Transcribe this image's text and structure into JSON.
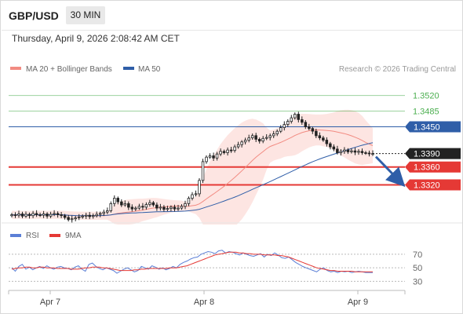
{
  "header": {
    "symbol": "GBP/USD",
    "timeframe": "30 MIN",
    "datetime": "Thursday, April 9, 2026 2:08:42 AM CET"
  },
  "legend": {
    "ma20": {
      "label": "MA 20 + Bollinger Bands",
      "color": "#f28b82"
    },
    "ma50": {
      "label": "MA 50",
      "color": "#2f5ea8"
    },
    "credit": "Research © 2026 Trading Central"
  },
  "rsi_legend": {
    "rsi": {
      "label": "RSI",
      "color": "#5b7fd6"
    },
    "ma9": {
      "label": "9MA",
      "color": "#e53935"
    }
  },
  "colors": {
    "resistance": "#4caf50",
    "pivot": "#2f5ea8",
    "support": "#e53935",
    "current": "#222222",
    "band_fill": "#fde0dd",
    "bull_candle": "#ffffff",
    "bear_candle": "#222222",
    "arrow": "#2f5ea8"
  },
  "chart_data": [
    {
      "type": "candlestick",
      "title": "GBP/USD",
      "x_tick_labels": [
        "Apr 7",
        "Apr 8",
        "Apr 9"
      ],
      "ylim": [
        1.324,
        1.3565
      ],
      "levels": [
        {
          "value": 1.352,
          "label": "1.3520",
          "kind": "resistance"
        },
        {
          "value": 1.3485,
          "label": "1.3485",
          "kind": "resistance"
        },
        {
          "value": 1.345,
          "label": "1.3450",
          "kind": "pivot"
        },
        {
          "value": 1.339,
          "label": "1.3390",
          "kind": "current"
        },
        {
          "value": 1.336,
          "label": "1.3360",
          "kind": "support"
        },
        {
          "value": 1.332,
          "label": "1.3320",
          "kind": "support"
        }
      ],
      "series": [
        {
          "name": "MA 20 + Bollinger Bands",
          "kind": "ma20_with_bands"
        },
        {
          "name": "MA 50",
          "kind": "ma50"
        }
      ],
      "price_path": [
        1.3253,
        1.3252,
        1.3255,
        1.325,
        1.3254,
        1.3251,
        1.3256,
        1.3253,
        1.3252,
        1.3255,
        1.325,
        1.3254,
        1.3256,
        1.3253,
        1.3251,
        1.3247,
        1.3242,
        1.3244,
        1.3246,
        1.3248,
        1.325,
        1.3252,
        1.3249,
        1.3251,
        1.3254,
        1.3256,
        1.3259,
        1.3262,
        1.3278,
        1.329,
        1.3282,
        1.3275,
        1.3278,
        1.327,
        1.3266,
        1.3268,
        1.3272,
        1.327,
        1.3276,
        1.328,
        1.3275,
        1.3268,
        1.327,
        1.3265,
        1.3267,
        1.327,
        1.3266,
        1.3268,
        1.3272,
        1.3278,
        1.329,
        1.3298,
        1.33,
        1.333,
        1.3372,
        1.3382,
        1.3385,
        1.338,
        1.3389,
        1.3395,
        1.3392,
        1.3398,
        1.3397,
        1.3405,
        1.341,
        1.3416,
        1.342,
        1.3425,
        1.343,
        1.3422,
        1.3418,
        1.3424,
        1.3426,
        1.343,
        1.3434,
        1.344,
        1.3448,
        1.3455,
        1.3462,
        1.347,
        1.3478,
        1.3466,
        1.346,
        1.345,
        1.3446,
        1.344,
        1.343,
        1.3425,
        1.342,
        1.3412,
        1.3405,
        1.34,
        1.3392,
        1.3395,
        1.3398,
        1.3394,
        1.3396,
        1.3393,
        1.3395,
        1.3392,
        1.3391,
        1.339,
        1.339
      ],
      "projection": {
        "from": 1.339,
        "to": 1.332
      }
    },
    {
      "type": "line",
      "title": "RSI",
      "series_names": [
        "RSI",
        "9MA"
      ],
      "y_tick_labels": [
        "70",
        "50",
        "30"
      ],
      "ylim": [
        20,
        85
      ],
      "rsi": [
        50,
        45,
        52,
        55,
        48,
        51,
        47,
        50,
        52,
        49,
        53,
        50,
        48,
        51,
        52,
        50,
        49,
        47,
        51,
        53,
        48,
        45,
        55,
        57,
        52,
        49,
        47,
        50,
        48,
        46,
        42,
        45,
        48,
        50,
        47,
        44,
        46,
        52,
        50,
        48,
        53,
        51,
        48,
        50,
        47,
        49,
        52,
        50,
        55,
        58,
        60,
        63,
        65,
        66,
        70,
        72,
        74,
        73,
        71,
        75,
        76,
        72,
        74,
        73,
        71,
        69,
        72,
        70,
        68,
        67,
        69,
        71,
        66,
        70,
        68,
        72,
        69,
        65,
        64,
        66,
        62,
        58,
        55,
        52,
        50,
        48,
        46,
        44,
        48,
        50,
        46,
        44,
        45,
        43,
        45,
        44,
        45,
        43,
        44,
        45,
        44,
        43,
        43,
        43
      ],
      "ma9": [
        48,
        49,
        50,
        50,
        51,
        51,
        50,
        50,
        51,
        51,
        50,
        50,
        50,
        49,
        49,
        49,
        49,
        48,
        48,
        48,
        49,
        50,
        50,
        51,
        51,
        51,
        50,
        50,
        49,
        48,
        47,
        46,
        46,
        46,
        46,
        47,
        47,
        48,
        48,
        49,
        49,
        49,
        49,
        49,
        49,
        50,
        50,
        50,
        51,
        52,
        53,
        55,
        57,
        59,
        61,
        63,
        65,
        67,
        69,
        70,
        71,
        72,
        73,
        73,
        73,
        72,
        72,
        71,
        71,
        70,
        70,
        70,
        69,
        69,
        69,
        69,
        68,
        68,
        67,
        66,
        64,
        62,
        60,
        58,
        56,
        54,
        52,
        50,
        49,
        48,
        47,
        46,
        46,
        45,
        45,
        45,
        45,
        45,
        44,
        44,
        44,
        44,
        44,
        44
      ]
    }
  ]
}
